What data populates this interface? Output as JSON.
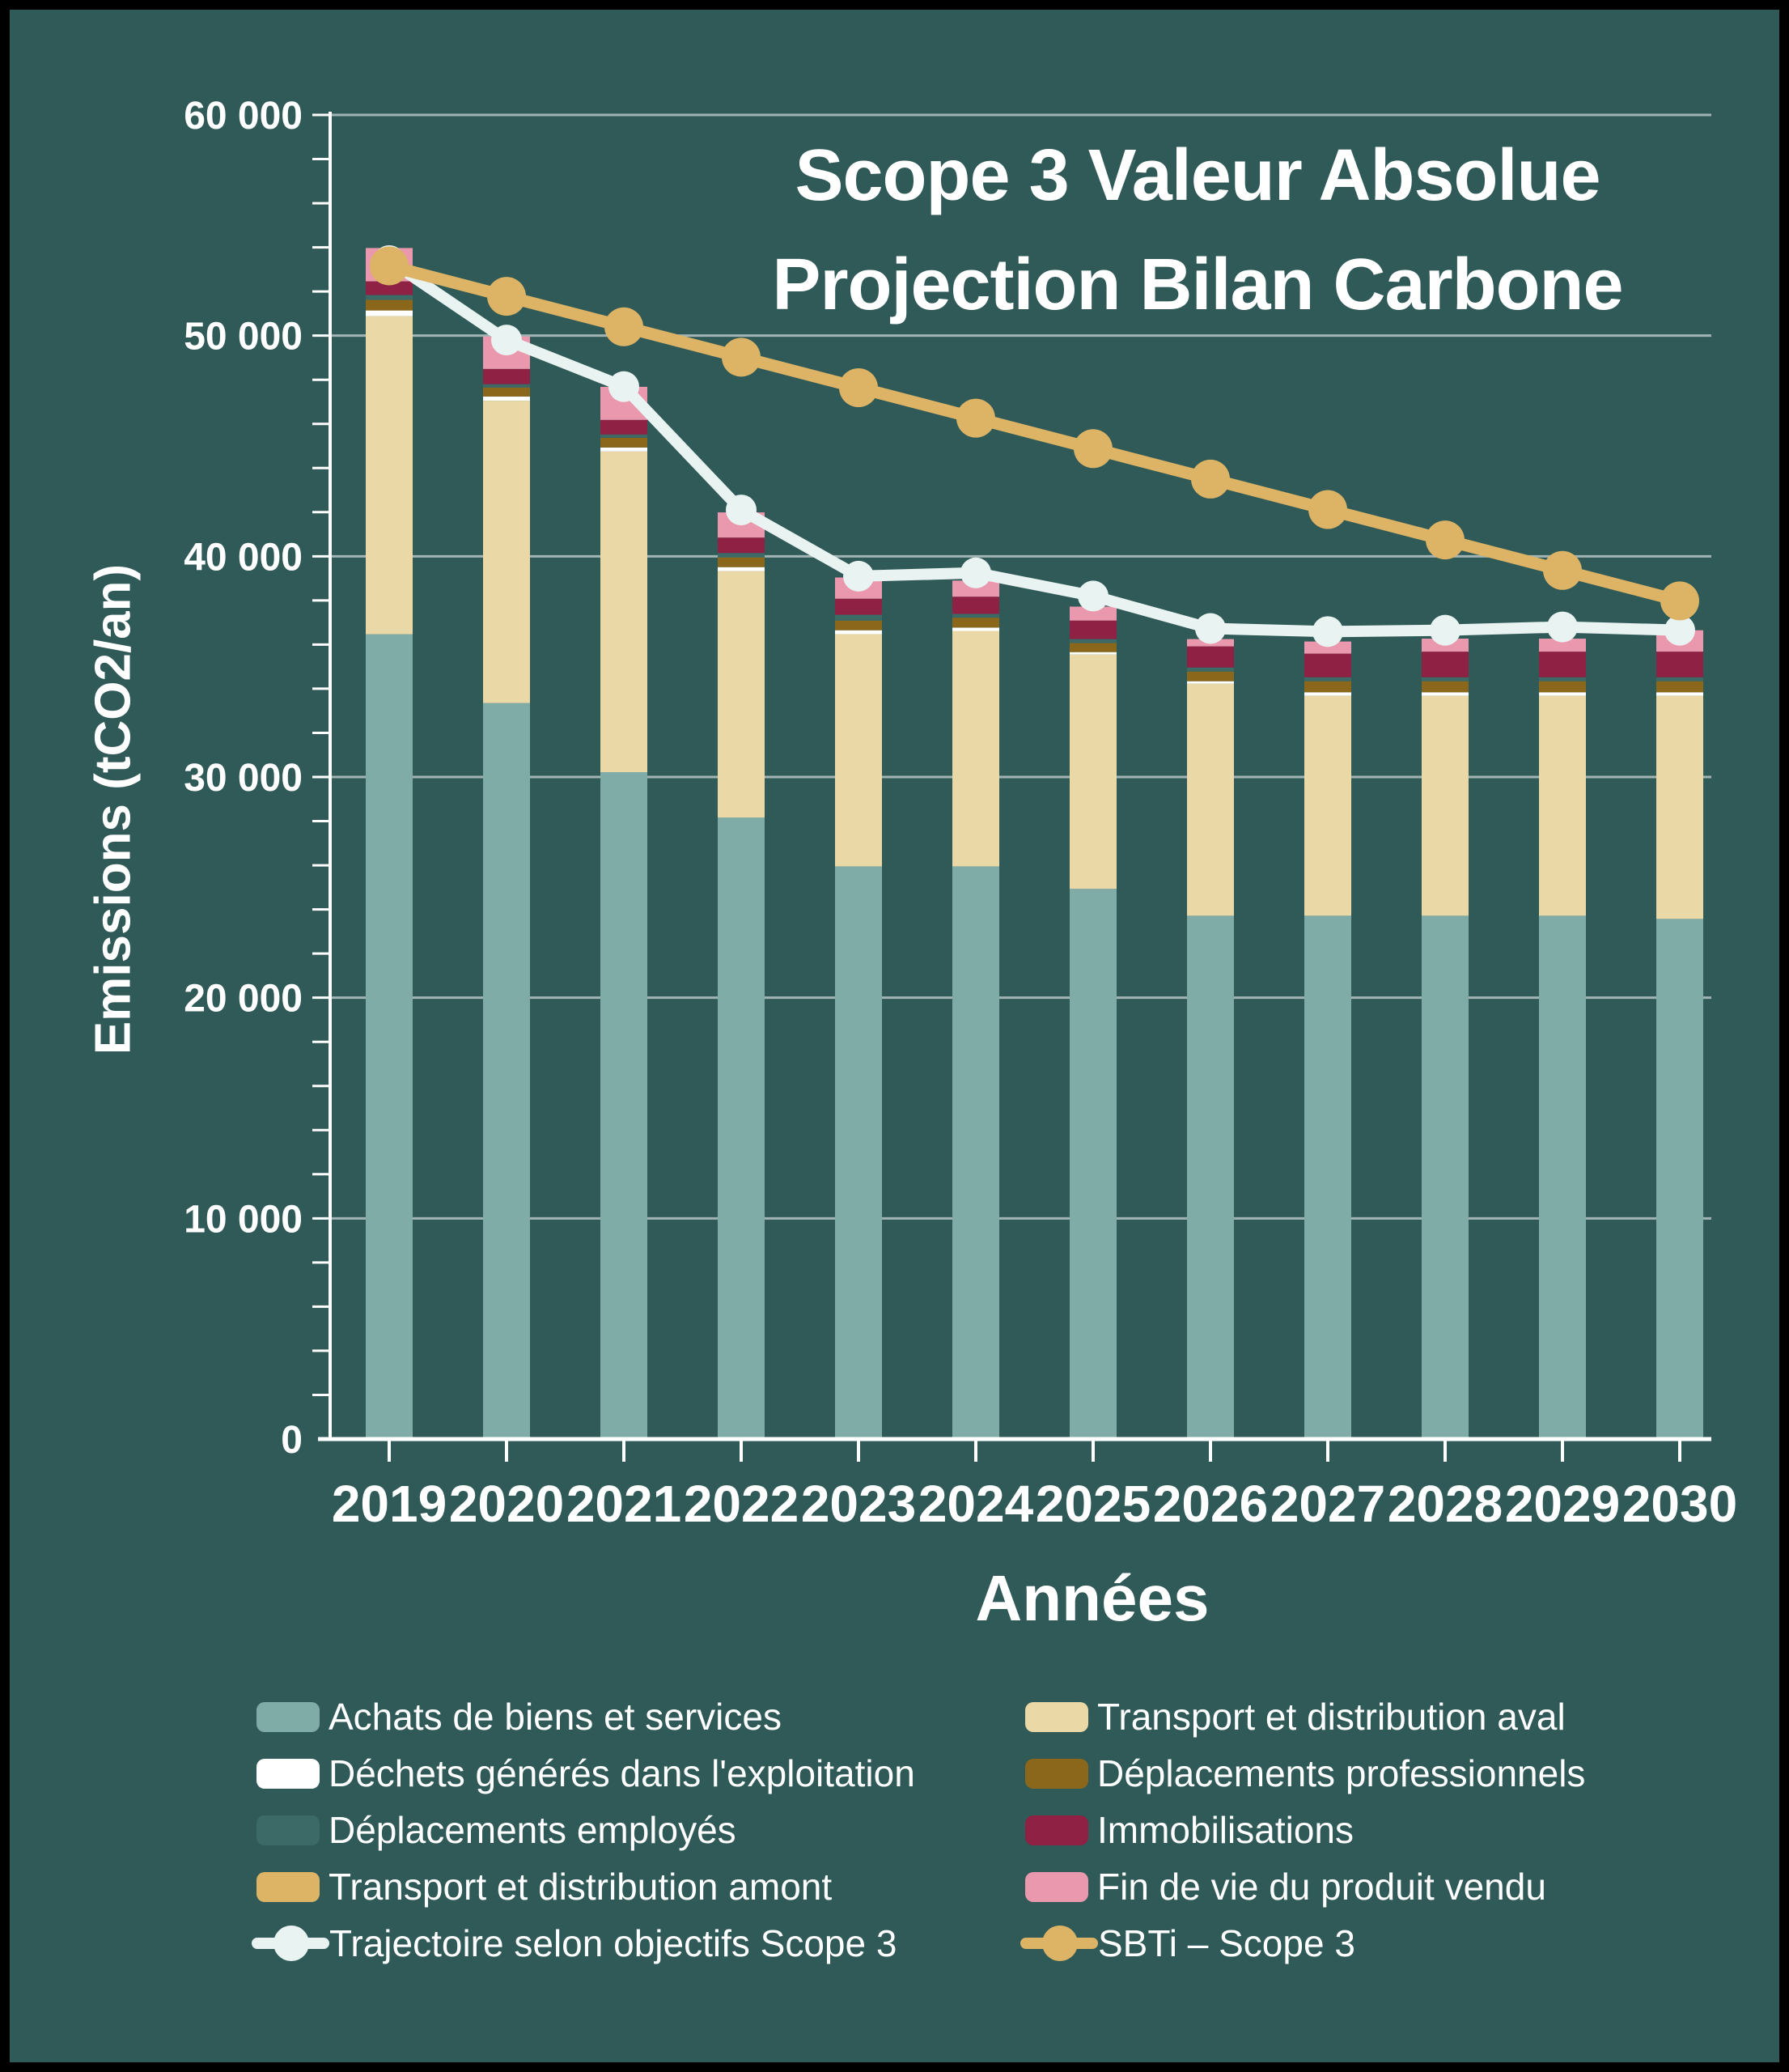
{
  "title": {
    "line1": "Scope 3 Valeur Absolue",
    "line2": "Projection Bilan Carbone"
  },
  "axes": {
    "y_label": "Emissions (tCO2/an)",
    "x_label": "Années",
    "y_ticks": [
      "0",
      "10 000",
      "20 000",
      "30 000",
      "40 000",
      "50 000",
      "60 000"
    ],
    "y_max": 60000,
    "y_major_step": 10000,
    "y_minor_step": 2000
  },
  "colors": {
    "background": "#2F5A57",
    "frame": "#000000",
    "text": "#FFFFFF",
    "gridline": "rgba(255,255,255,0.55)"
  },
  "chart_data": {
    "type": "bar",
    "stacked": true,
    "title": "Scope 3 Valeur Absolue Projection Bilan Carbone",
    "xlabel": "Années",
    "ylabel": "Emissions (tCO2/an)",
    "ylim": [
      0,
      60000
    ],
    "grid": "horizontal major gridlines every 10000, minor ticks every 2000, legend below",
    "categories": [
      "2019",
      "2020",
      "2021",
      "2022",
      "2023",
      "2024",
      "2025",
      "2026",
      "2027",
      "2028",
      "2029",
      "2030"
    ],
    "series": [
      {
        "name": "Achats de biens et services",
        "color": "#7FACA7",
        "values": [
          36470,
          33350,
          30220,
          28160,
          25950,
          25950,
          24930,
          23715,
          23715,
          23715,
          23715,
          23570
        ]
      },
      {
        "name": "Transport et distribution aval",
        "color": "#EBD8A7",
        "values": [
          14410,
          13700,
          14530,
          11170,
          10520,
          10670,
          10620,
          10515,
          9965,
          9965,
          9965,
          10110
        ]
      },
      {
        "name": "Déchets générés dans l'exploitation",
        "color": "#FFFFFF",
        "values": [
          260,
          190,
          180,
          180,
          180,
          150,
          110,
          110,
          160,
          160,
          160,
          160
        ]
      },
      {
        "name": "Déplacements professionnels",
        "color": "#8A671B",
        "values": [
          480,
          410,
          440,
          440,
          440,
          450,
          410,
          440,
          500,
          500,
          500,
          500
        ]
      },
      {
        "name": "Déplacements employés",
        "color": "#3C6A66",
        "values": [
          220,
          150,
          150,
          200,
          260,
          170,
          180,
          180,
          180,
          180,
          180,
          180
        ]
      },
      {
        "name": "Immobilisations",
        "color": "#8E2144",
        "values": [
          620,
          690,
          660,
          700,
          730,
          780,
          840,
          960,
          1070,
          1160,
          1160,
          1160
        ]
      },
      {
        "name": "Transport et distribution amont",
        "color": "#DDB365",
        "values": [
          0,
          0,
          0,
          0,
          0,
          0,
          0,
          0,
          0,
          0,
          0,
          0
        ]
      },
      {
        "name": "Fin de vie du produit vendu",
        "color": "#E998AD",
        "values": [
          1510,
          1470,
          1500,
          1140,
          960,
          730,
          630,
          330,
          550,
          590,
          590,
          970
        ]
      }
    ],
    "lines": [
      {
        "name": "Trajectoire selon objectifs Scope 3",
        "color": "#E9F3F1",
        "values": [
          53400,
          49800,
          47690,
          42100,
          39100,
          39250,
          38200,
          36730,
          36590,
          36650,
          36800,
          36650
        ]
      },
      {
        "name": "SBTi – Scope 3",
        "color": "#DDB365",
        "values": [
          53160,
          51780,
          50400,
          49020,
          47640,
          46260,
          44880,
          43500,
          42120,
          40740,
          39360,
          37980
        ]
      }
    ]
  },
  "legend": {
    "left": [
      {
        "label": "Achats de biens et services",
        "color": "#7FACA7",
        "marker": "swatch"
      },
      {
        "label": "Déchets générés dans l'exploitation",
        "color": "#FFFFFF",
        "marker": "swatch"
      },
      {
        "label": "Déplacements employés",
        "color": "#3C6A66",
        "marker": "swatch"
      },
      {
        "label": "Transport et distribution amont",
        "color": "#DDB365",
        "marker": "swatch"
      },
      {
        "label": "Trajectoire selon objectifs Scope 3",
        "color": "#E9F3F1",
        "marker": "line"
      }
    ],
    "right": [
      {
        "label": "Transport et distribution aval",
        "color": "#EBD8A7",
        "marker": "swatch"
      },
      {
        "label": "Déplacements professionnels",
        "color": "#8A671B",
        "marker": "swatch"
      },
      {
        "label": "Immobilisations",
        "color": "#8E2144",
        "marker": "swatch"
      },
      {
        "label": "Fin de vie du produit vendu",
        "color": "#E998AD",
        "marker": "swatch"
      },
      {
        "label": "SBTi – Scope 3",
        "color": "#DDB365",
        "marker": "line"
      }
    ]
  }
}
